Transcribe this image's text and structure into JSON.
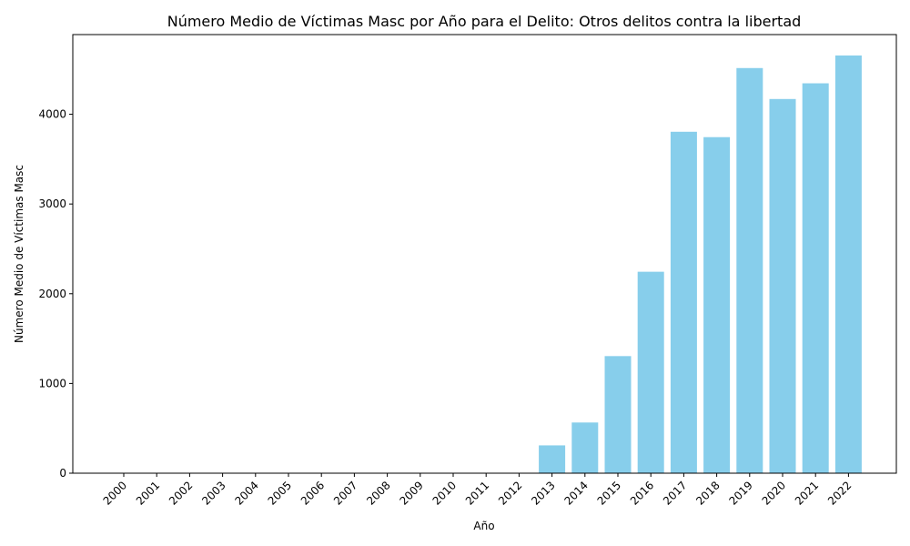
{
  "chart_data": {
    "type": "bar",
    "title": "Número Medio de Víctimas Masc por Año para el Delito: Otros delitos contra la libertad",
    "xlabel": "Año",
    "ylabel": "Número Medio de Víctimas Masc",
    "categories": [
      "2000",
      "2001",
      "2002",
      "2003",
      "2004",
      "2005",
      "2006",
      "2007",
      "2008",
      "2009",
      "2010",
      "2011",
      "2012",
      "2013",
      "2014",
      "2015",
      "2016",
      "2017",
      "2018",
      "2019",
      "2020",
      "2021",
      "2022"
    ],
    "values": [
      0,
      0,
      0,
      0,
      0,
      0,
      0,
      0,
      0,
      0,
      0,
      0,
      0,
      310,
      565,
      1305,
      2245,
      3805,
      3745,
      4515,
      4170,
      4345,
      4655
    ],
    "ylim": [
      0,
      4888
    ],
    "yticks": [
      0,
      1000,
      2000,
      3000,
      4000
    ],
    "bar_color": "#87ceeb",
    "grid": false
  }
}
